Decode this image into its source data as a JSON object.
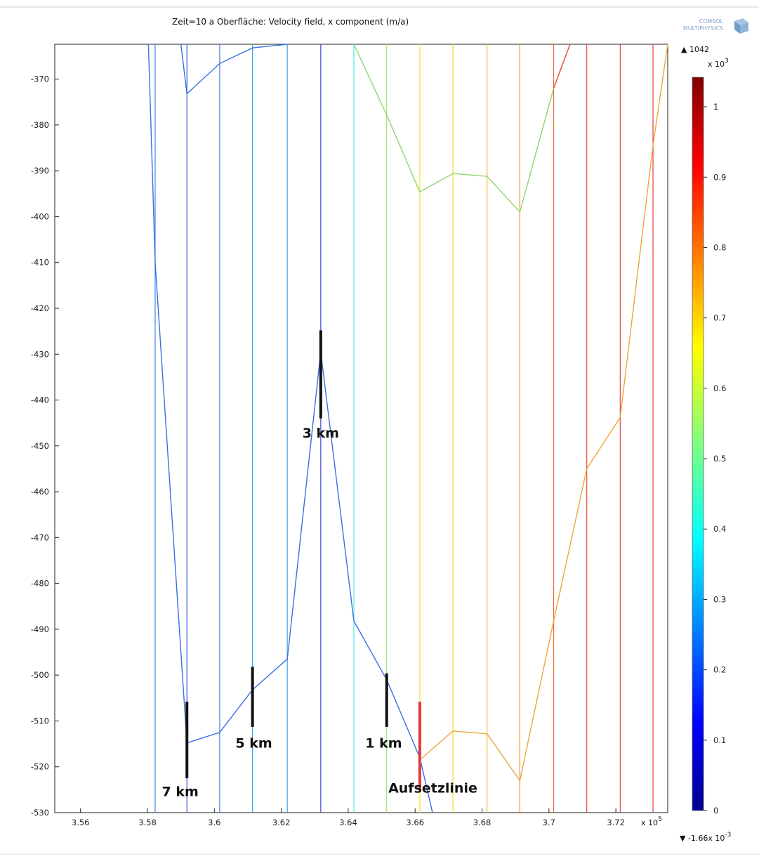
{
  "chart_data": {
    "type": "line",
    "title": "Zeit=10 a   Oberfläche: Velocity field, x component (m/a)",
    "logo": {
      "line1": "COMSOL",
      "line2": "MULTIPHYSICS"
    },
    "x_ticks": [
      "3.56",
      "3.58",
      "3.6",
      "3.62",
      "3.64",
      "3.66",
      "3.68",
      "3.7",
      "3.72"
    ],
    "x_tick_values": [
      3.56,
      3.58,
      3.6,
      3.62,
      3.64,
      3.66,
      3.68,
      3.7,
      3.72
    ],
    "x_multiplier": "x 10",
    "x_multiplier_exp": "5",
    "xlim": [
      3.5523,
      3.7355
    ],
    "y_ticks": [
      "-370",
      "-380",
      "-390",
      "-400",
      "-410",
      "-420",
      "-430",
      "-440",
      "-450",
      "-460",
      "-470",
      "-480",
      "-490",
      "-500",
      "-510",
      "-520",
      "-530"
    ],
    "y_tick_values": [
      -370,
      -380,
      -390,
      -400,
      -410,
      -420,
      -430,
      -440,
      -450,
      -460,
      -470,
      -480,
      -490,
      -500,
      -510,
      -520,
      -530
    ],
    "ylim": [
      -530,
      -362.4
    ],
    "colorbar": {
      "max_label": "▲ 1042",
      "multiplier": "x 10",
      "multiplier_exp": "3",
      "ticks": [
        "1",
        "0.9",
        "0.8",
        "0.7",
        "0.6",
        "0.5",
        "0.4",
        "0.3",
        "0.2",
        "0.1",
        "0"
      ],
      "tick_values": [
        1,
        0.9,
        0.8,
        0.7,
        0.6,
        0.5,
        0.4,
        0.3,
        0.2,
        0.1,
        0
      ],
      "range": [
        0,
        1.042
      ],
      "min_label": "▼ -1.66x 10",
      "min_exp": "-3"
    },
    "vertical_lines": [
      {
        "x": 3.5823,
        "color": "#3d82e6"
      },
      {
        "x": 3.5918,
        "color": "#2e5fd8"
      },
      {
        "x": 3.6016,
        "color": "#3a82e6"
      },
      {
        "x": 3.6114,
        "color": "#3aa0ee"
      },
      {
        "x": 3.6218,
        "color": "#3aa0ee"
      },
      {
        "x": 3.6318,
        "color": "#3548d2"
      },
      {
        "x": 3.6417,
        "color": "#4de6e8"
      },
      {
        "x": 3.6515,
        "color": "#9ae86a"
      },
      {
        "x": 3.6614,
        "color": "#f0ea28"
      },
      {
        "x": 3.6713,
        "color": "#f8d62a"
      },
      {
        "x": 3.6815,
        "color": "#f8b838"
      },
      {
        "x": 3.6913,
        "color": "#f39030"
      },
      {
        "x": 3.7014,
        "color": "#f06638"
      },
      {
        "x": 3.7113,
        "color": "#ee4a3a"
      },
      {
        "x": 3.7213,
        "color": "#ec3b3b"
      },
      {
        "x": 3.7311,
        "color": "#e83838"
      }
    ],
    "series": [
      {
        "color": "#3a6fe0",
        "points": [
          [
            3.5803,
            -362.4
          ],
          [
            3.5823,
            -410
          ],
          [
            3.5918,
            -514.8
          ],
          [
            3.6016,
            -512.5
          ],
          [
            3.6114,
            -503.2
          ],
          [
            3.6218,
            -496.5
          ],
          [
            3.6318,
            -429.5
          ],
          [
            3.6417,
            -488.2
          ],
          [
            3.6515,
            -501.0
          ],
          [
            3.6614,
            -518.0
          ],
          [
            3.6652,
            -530
          ]
        ]
      },
      {
        "color": "#3a6fe0",
        "points": [
          [
            3.59,
            -362.4
          ],
          [
            3.5918,
            -373.2
          ],
          [
            3.6016,
            -366.6
          ],
          [
            3.6114,
            -363.2
          ],
          [
            3.6218,
            -362.4
          ]
        ]
      },
      {
        "color": "#8fd56a",
        "points": [
          [
            3.6417,
            -362.4
          ],
          [
            3.6515,
            -377.8
          ],
          [
            3.6614,
            -394.6
          ],
          [
            3.6713,
            -390.6
          ],
          [
            3.6815,
            -391.2
          ],
          [
            3.6913,
            -399.0
          ],
          [
            3.7014,
            -372.0
          ],
          [
            3.7063,
            -362.4
          ]
        ]
      },
      {
        "color": "#e9a83c",
        "points": [
          [
            3.6614,
            -518.5
          ],
          [
            3.6713,
            -512.2
          ],
          [
            3.6815,
            -512.8
          ],
          [
            3.6913,
            -523.0
          ],
          [
            3.7014,
            -488.2
          ],
          [
            3.7113,
            -455.0
          ],
          [
            3.7213,
            -443.8
          ],
          [
            3.7311,
            -384.5
          ],
          [
            3.7355,
            -362.4
          ]
        ]
      },
      {
        "color": "#ee4a3a",
        "points": [
          [
            3.7063,
            -362.4
          ],
          [
            3.7014,
            -372.0
          ]
        ]
      }
    ],
    "annotations": [
      {
        "label": "7 km",
        "x": 3.5918,
        "y_from": -505.8,
        "y_to": -522.5,
        "bar_color": "#111111",
        "label_x": 3.5898,
        "label_y": -526.4
      },
      {
        "label": "5 km",
        "x": 3.6114,
        "y_from": -498.2,
        "y_to": -511.3,
        "bar_color": "#111111",
        "label_x": 3.6118,
        "label_y": -515.8
      },
      {
        "label": "3 km",
        "x": 3.6318,
        "y_from": -424.8,
        "y_to": -444.0,
        "bar_color": "#111111",
        "label_x": 3.6318,
        "label_y": -448.2
      },
      {
        "label": "1 km",
        "x": 3.6515,
        "y_from": -499.6,
        "y_to": -511.3,
        "bar_color": "#111111",
        "label_x": 3.6506,
        "label_y": -515.8
      },
      {
        "label": "Aufsetzlinie",
        "x": 3.6614,
        "y_from": -505.8,
        "y_to": -524.8,
        "bar_color": "#e23a3a",
        "label_x": 3.6653,
        "label_y": -525.6
      }
    ]
  }
}
